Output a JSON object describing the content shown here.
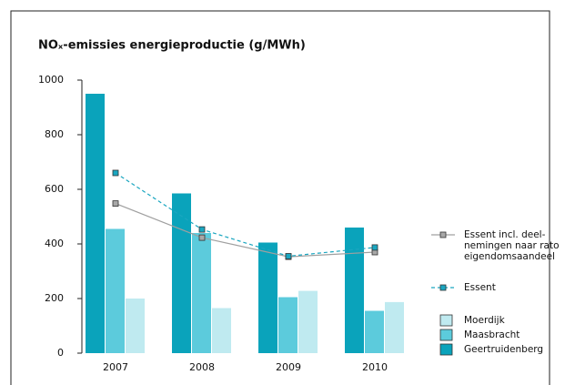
{
  "chart_data": {
    "type": "bar",
    "title": "NOₓ-emissies energieproductie (g/MWh)",
    "categories": [
      "2007",
      "2008",
      "2009",
      "2010"
    ],
    "ylim": [
      0,
      1000
    ],
    "yticks": [
      0,
      200,
      400,
      600,
      800,
      1000
    ],
    "series": [
      {
        "name": "Essent incl. deel-\nnemingen naar rato\neigendomsaandeel",
        "type": "line",
        "dashed": false,
        "color": "#a0a0a0",
        "marker_color": "#a8a8a8",
        "values": [
          548,
          423,
          353,
          370
        ]
      },
      {
        "name": "Essent",
        "type": "line",
        "dashed": true,
        "color": "#1aa6c0",
        "marker_color": "#1aa6c0",
        "values": [
          660,
          453,
          355,
          387
        ]
      },
      {
        "name": "Moerdijk",
        "type": "bar",
        "color": "#bfeaf0",
        "values": [
          200,
          165,
          228,
          187
        ]
      },
      {
        "name": "Maasbracht",
        "type": "bar",
        "color": "#5ccbdc",
        "values": [
          455,
          440,
          205,
          155
        ]
      },
      {
        "name": "Geertruidenberg",
        "type": "bar",
        "color": "#0aa3bb",
        "values": [
          950,
          585,
          405,
          460
        ]
      }
    ]
  }
}
